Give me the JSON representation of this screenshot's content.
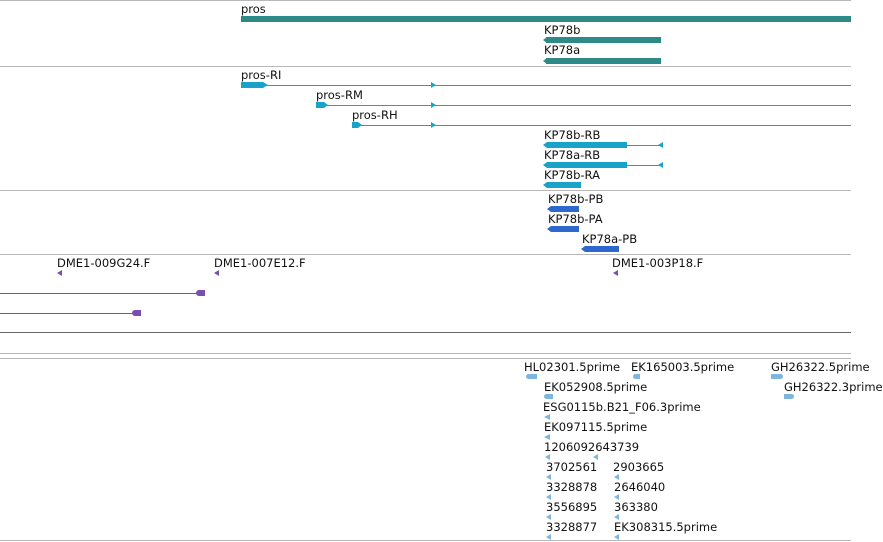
{
  "colors": {
    "gene": "#2e8a87",
    "transcript": "#1aa3c9",
    "protein": "#2f68cc",
    "clone": "#7a4fb0",
    "est": "#7fb6dd",
    "separator": "#b8b8b8"
  },
  "gene_track": {
    "genes": [
      {
        "label": "pros"
      },
      {
        "label": "KP78b"
      },
      {
        "label": "KP78a"
      }
    ]
  },
  "transcript_track": {
    "transcripts": [
      {
        "label": "pros-RI"
      },
      {
        "label": "pros-RM"
      },
      {
        "label": "pros-RH"
      },
      {
        "label": "KP78b-RB"
      },
      {
        "label": "KP78a-RB"
      },
      {
        "label": "KP78b-RA"
      }
    ]
  },
  "protein_track": {
    "proteins": [
      {
        "label": "KP78b-PB"
      },
      {
        "label": "KP78b-PA"
      },
      {
        "label": "KP78a-PB"
      }
    ]
  },
  "clone_track": {
    "clones": [
      {
        "label": "DME1-009G24.F"
      },
      {
        "label": "DME1-007E12.F"
      },
      {
        "label": "DME1-003P18.F"
      }
    ]
  },
  "est_track": {
    "ests": [
      {
        "label": "HL02301.5prime"
      },
      {
        "label": "EK165003.5prime"
      },
      {
        "label": "GH26322.5prime"
      },
      {
        "label": "EK052908.5prime"
      },
      {
        "label": "GH26322.3prime"
      },
      {
        "label": "ESG0115b.B21_F06.3prime"
      },
      {
        "label": "EK097115.5prime"
      },
      {
        "label": "1206092643739"
      },
      {
        "label": "3702561"
      },
      {
        "label": "2903665"
      },
      {
        "label": "3328878"
      },
      {
        "label": "2646040"
      },
      {
        "label": "3556895"
      },
      {
        "label": "363380"
      },
      {
        "label": "3328877"
      },
      {
        "label": "EK308315.5prime"
      }
    ]
  }
}
